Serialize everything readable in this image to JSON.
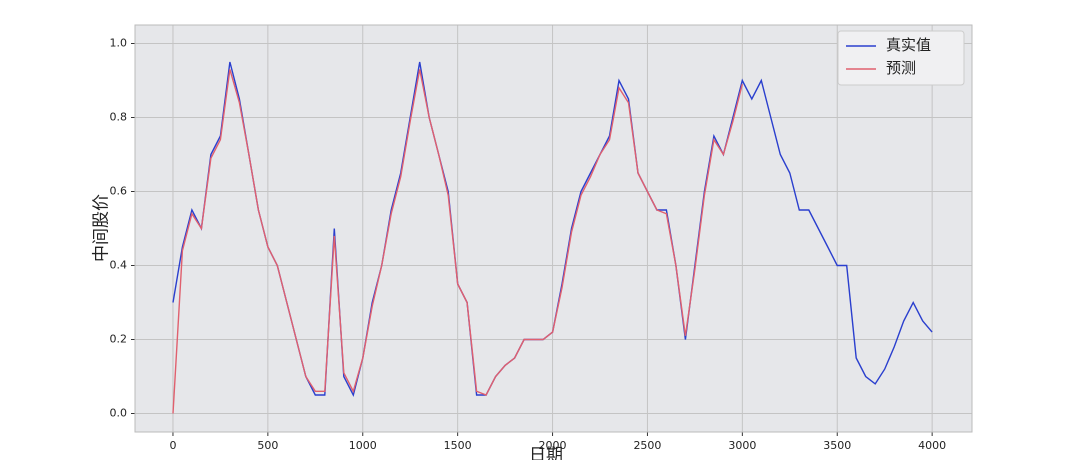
{
  "chart_data": {
    "type": "line",
    "xlabel": "日期",
    "ylabel": "中间股价",
    "x": [
      0,
      50,
      100,
      150,
      200,
      250,
      300,
      350,
      400,
      450,
      500,
      550,
      600,
      650,
      700,
      750,
      800,
      850,
      900,
      950,
      1000,
      1050,
      1100,
      1150,
      1200,
      1250,
      1300,
      1350,
      1400,
      1450,
      1500,
      1550,
      1600,
      1650,
      1700,
      1750,
      1800,
      1850,
      1900,
      1950,
      2000,
      2050,
      2100,
      2150,
      2200,
      2250,
      2300,
      2350,
      2400,
      2450,
      2500,
      2550,
      2600,
      2650,
      2700,
      2750,
      2800,
      2850,
      2900,
      2950,
      3000,
      3050,
      3100,
      3150,
      3200,
      3250,
      3300,
      3350,
      3400,
      3450,
      3500,
      3550,
      3600,
      3650,
      3700,
      3750,
      3800,
      3850,
      3900,
      3950,
      4000
    ],
    "series": [
      {
        "name": "真实值",
        "color": "#2a3fce",
        "values": [
          0.3,
          0.45,
          0.55,
          0.5,
          0.7,
          0.75,
          0.95,
          0.85,
          0.7,
          0.55,
          0.45,
          0.4,
          0.3,
          0.2,
          0.1,
          0.05,
          0.05,
          0.5,
          0.1,
          0.05,
          0.15,
          0.3,
          0.4,
          0.55,
          0.65,
          0.8,
          0.95,
          0.8,
          0.7,
          0.6,
          0.35,
          0.3,
          0.05,
          0.05,
          0.1,
          0.13,
          0.15,
          0.2,
          0.2,
          0.2,
          0.22,
          0.35,
          0.5,
          0.6,
          0.65,
          0.7,
          0.75,
          0.9,
          0.85,
          0.65,
          0.6,
          0.55,
          0.55,
          0.4,
          0.2,
          0.4,
          0.6,
          0.75,
          0.7,
          0.8,
          0.9,
          0.85,
          0.9,
          0.8,
          0.7,
          0.65,
          0.55,
          0.55,
          0.5,
          0.45,
          0.4,
          0.4,
          0.15,
          0.1,
          0.08,
          0.12,
          0.18,
          0.25,
          0.3,
          0.25,
          0.22
        ]
      },
      {
        "name": "预测",
        "color": "#e0606e",
        "values": [
          0.0,
          0.44,
          0.54,
          0.5,
          0.69,
          0.74,
          0.93,
          0.84,
          0.7,
          0.55,
          0.45,
          0.4,
          0.3,
          0.2,
          0.1,
          0.06,
          0.06,
          0.48,
          0.11,
          0.06,
          0.15,
          0.29,
          0.4,
          0.54,
          0.64,
          0.79,
          0.93,
          0.8,
          0.7,
          0.59,
          0.35,
          0.3,
          0.06,
          0.05,
          0.1,
          0.13,
          0.15,
          0.2,
          0.2,
          0.2,
          0.22,
          0.34,
          0.49,
          0.59,
          0.64,
          0.7,
          0.74,
          0.88,
          0.84,
          0.65,
          0.6,
          0.55,
          0.54,
          0.4,
          0.21,
          0.39,
          0.59,
          0.74,
          0.7,
          0.79,
          0.89,
          null,
          null,
          null,
          null,
          null,
          null,
          null,
          null,
          null,
          null,
          null,
          null,
          null,
          null,
          null,
          null,
          null,
          null,
          null,
          null
        ]
      }
    ],
    "xlim": [
      -200,
      4210
    ],
    "xticks": [
      0,
      500,
      1000,
      1500,
      2000,
      2500,
      3000,
      3500,
      4000
    ],
    "ylim": [
      -0.05,
      1.05
    ],
    "yticks": [
      {
        "value": 0,
        "label": "0.0"
      },
      0.2,
      0.4,
      0.6,
      0.8,
      {
        "value": 1,
        "label": "1.0"
      }
    ],
    "grid": true,
    "legend": "upper right"
  }
}
